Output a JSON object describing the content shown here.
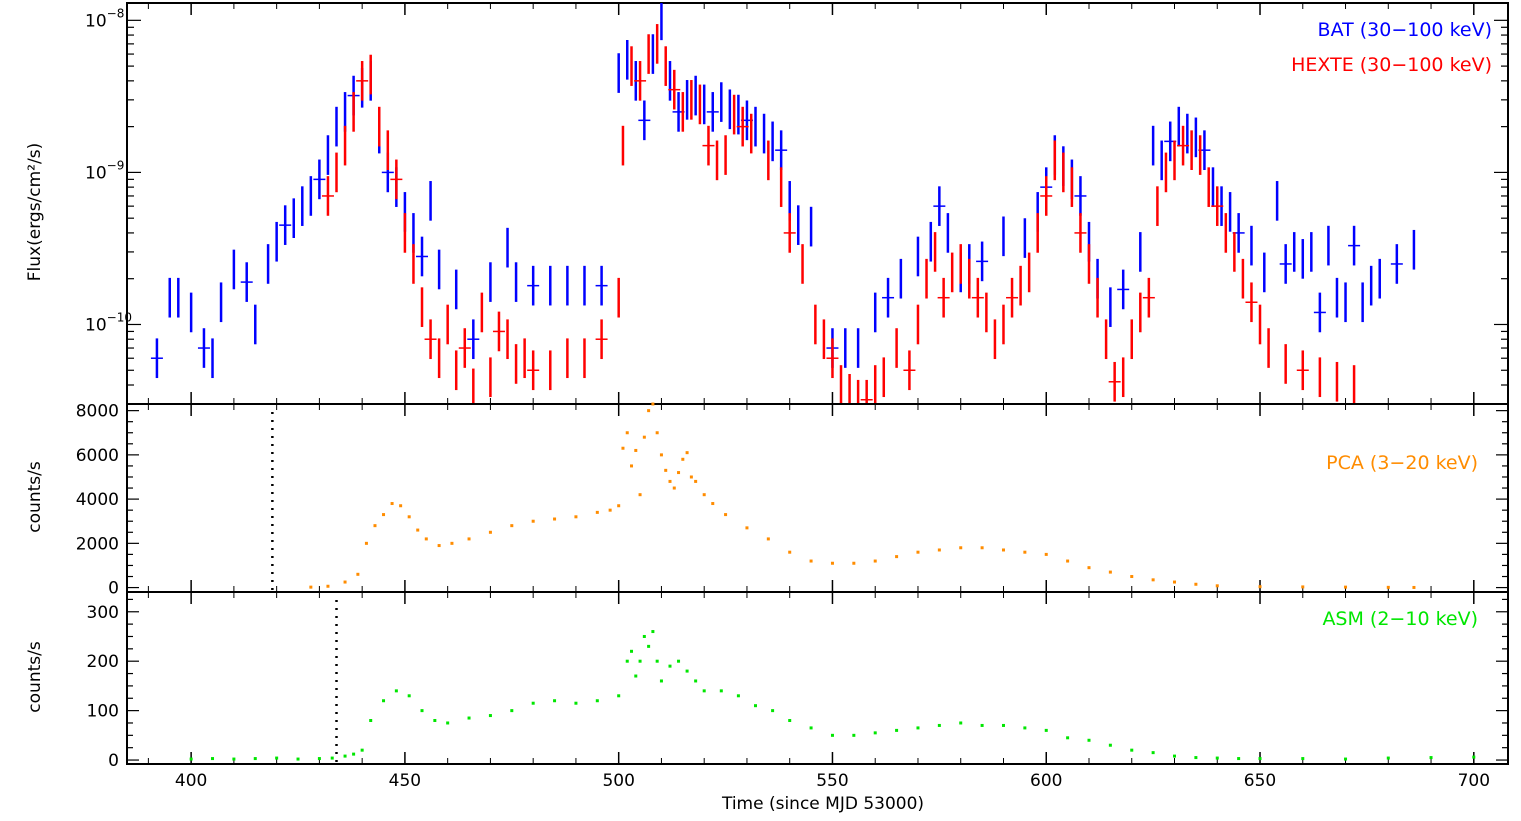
{
  "chart_data": [
    {
      "type": "scatter",
      "panel": "top",
      "ylabel": "Flux(ergs/cm²/s)",
      "yscale": "log",
      "ylim": [
        3e-11,
        1.3e-08
      ],
      "xlim": [
        385,
        708
      ],
      "yticks": [
        {
          "value": 1e-10,
          "label": "10",
          "exp": "−10"
        },
        {
          "value": 1e-09,
          "label": "10",
          "exp": "−9"
        },
        {
          "value": 1e-08,
          "label": "10",
          "exp": "−8"
        }
      ],
      "series": [
        {
          "name": "BAT (30−100 keV)",
          "color": "#0000ff",
          "x": [
            392,
            395,
            397,
            400,
            403,
            405,
            407,
            410,
            413,
            415,
            418,
            420,
            422,
            424,
            426,
            428,
            430,
            432,
            434,
            436,
            438,
            440,
            442,
            444,
            446,
            448,
            450,
            452,
            454,
            456,
            458,
            462,
            466,
            470,
            474,
            476,
            480,
            484,
            488,
            492,
            496,
            500,
            502,
            504,
            506,
            508,
            510,
            512,
            514,
            516,
            518,
            520,
            522,
            524,
            526,
            528,
            530,
            532,
            534,
            536,
            538,
            540,
            542,
            545,
            550,
            553,
            556,
            560,
            563,
            566,
            570,
            573,
            575,
            577,
            580,
            582,
            585,
            590,
            595,
            598,
            600,
            602,
            604,
            606,
            608,
            610,
            612,
            615,
            618,
            622,
            625,
            627,
            629,
            631,
            633,
            635,
            637,
            639,
            641,
            643,
            645,
            648,
            651,
            654,
            656,
            658,
            660,
            662,
            664,
            666,
            668,
            670,
            672,
            674,
            676,
            678,
            682,
            686
          ],
          "y": [
            6e-11,
            1.5e-10,
            1.5e-10,
            1.2e-10,
            7e-11,
            6e-11,
            1.4e-10,
            2.3e-10,
            1.9e-10,
            1e-10,
            2.5e-10,
            3.5e-10,
            4.5e-10,
            5e-10,
            6e-10,
            7e-10,
            9e-10,
            1.3e-09,
            2e-09,
            2.5e-09,
            3.2e-09,
            3.6e-09,
            4e-09,
            1.8e-09,
            1e-09,
            8e-10,
            5.5e-10,
            4e-10,
            2.8e-10,
            6.5e-10,
            2.3e-10,
            1.7e-10,
            8e-11,
            1.9e-10,
            3.2e-10,
            1.9e-10,
            1.8e-10,
            1.8e-10,
            1.8e-10,
            1.8e-10,
            1.8e-10,
            4.5e-09,
            5.5e-09,
            4e-09,
            2.2e-09,
            6e-09,
            1e-08,
            4e-09,
            2.5e-09,
            3e-09,
            3.2e-09,
            2.8e-09,
            2.5e-09,
            2.9e-09,
            2.6e-09,
            2.4e-09,
            2.2e-09,
            2e-09,
            1.8e-09,
            1.6e-09,
            1.4e-09,
            6.5e-10,
            4.5e-10,
            4.4e-10,
            7e-11,
            7e-11,
            7e-11,
            1.2e-10,
            1.5e-10,
            2e-10,
            2.8e-10,
            3.5e-10,
            6e-10,
            4e-10,
            2.2e-10,
            2.5e-10,
            2.6e-10,
            3.8e-10,
            3.7e-10,
            5.5e-10,
            8e-10,
            1.3e-09,
            1.1e-09,
            9e-10,
            7e-10,
            3.5e-10,
            2e-10,
            1.3e-10,
            1.7e-10,
            3e-10,
            1.5e-09,
            1.2e-09,
            1.6e-09,
            2e-09,
            1.8e-09,
            1.7e-09,
            1.4e-09,
            8e-10,
            6e-10,
            5.5e-10,
            4e-10,
            3.3e-10,
            2.2e-10,
            6.5e-10,
            2.5e-10,
            3e-10,
            2.7e-10,
            3e-10,
            1.2e-10,
            3.3e-10,
            1.5e-10,
            1.4e-10,
            3.3e-10,
            1.4e-10,
            1.8e-10,
            2e-10,
            2.5e-10,
            3.1e-10
          ]
        },
        {
          "name": "HEXTE (30−100 keV)",
          "color": "#ff0000",
          "x": [
            432,
            434,
            436,
            438,
            440,
            442,
            444,
            446,
            448,
            450,
            452,
            454,
            456,
            458,
            460,
            462,
            464,
            466,
            468,
            470,
            472,
            474,
            476,
            478,
            480,
            484,
            488,
            492,
            496,
            500,
            501,
            503,
            505,
            507,
            509,
            511,
            513,
            515,
            517,
            519,
            521,
            523,
            525,
            527,
            529,
            531,
            535,
            538,
            540,
            543,
            546,
            548,
            550,
            552,
            554,
            556,
            558,
            560,
            562,
            565,
            568,
            570,
            572,
            574,
            576,
            578,
            580,
            582,
            584,
            586,
            588,
            590,
            592,
            594,
            596,
            598,
            600,
            602,
            604,
            606,
            608,
            610,
            612,
            614,
            616,
            618,
            620,
            622,
            624,
            626,
            628,
            630,
            632,
            634,
            636,
            638,
            640,
            642,
            644,
            646,
            648,
            650,
            652,
            656,
            660,
            664,
            668,
            672
          ],
          "y": [
            7e-10,
            1e-09,
            1.5e-09,
            2.5e-09,
            4e-09,
            4.4e-09,
            2e-09,
            1.4e-09,
            9e-10,
            4e-10,
            2.5e-10,
            1.3e-10,
            8e-11,
            6e-11,
            1e-10,
            5e-11,
            7e-11,
            3.8e-11,
            1.2e-10,
            4.5e-11,
            9e-11,
            8e-11,
            5.5e-11,
            6e-11,
            5e-11,
            5e-11,
            6e-11,
            6e-11,
            8e-11,
            1.5e-10,
            1.5e-09,
            5e-09,
            4e-09,
            6e-09,
            7e-09,
            5e-09,
            3.5e-09,
            2.5e-09,
            3e-09,
            2.8e-09,
            1.5e-09,
            1.2e-09,
            1.3e-09,
            2.4e-09,
            2e-09,
            1.8e-09,
            1.2e-09,
            8e-10,
            4e-10,
            2.5e-10,
            1e-10,
            8e-11,
            6e-11,
            4e-11,
            3.5e-11,
            3.2e-11,
            3.2e-11,
            4e-11,
            4.5e-11,
            7e-11,
            5e-11,
            1e-10,
            2e-10,
            3e-10,
            1.5e-10,
            2.2e-10,
            2.5e-10,
            2e-10,
            1.5e-10,
            1.2e-10,
            8e-11,
            1e-10,
            1.5e-10,
            1.8e-10,
            2.2e-10,
            4e-10,
            7e-10,
            1.2e-09,
            1e-09,
            8e-10,
            4e-10,
            2.5e-10,
            1.5e-10,
            8e-11,
            4.2e-11,
            4.5e-11,
            8e-11,
            1.2e-10,
            1.5e-10,
            6e-10,
            1e-09,
            1.2e-09,
            1.5e-09,
            1.4e-09,
            1.3e-09,
            8e-10,
            6e-10,
            4e-10,
            3e-10,
            2e-10,
            1.4e-10,
            1e-10,
            7e-11,
            5.5e-11,
            5e-11,
            4.5e-11,
            4.2e-11,
            4e-11
          ]
        }
      ]
    },
    {
      "type": "scatter",
      "panel": "middle",
      "ylabel": "counts/s",
      "ylim": [
        -200,
        8300
      ],
      "xlim": [
        385,
        708
      ],
      "yticks": [
        0,
        2000,
        4000,
        6000,
        8000
      ],
      "vline_x": 419,
      "series": [
        {
          "name": "PCA (3−20 keV)",
          "color": "#ff8c00",
          "x": [
            428,
            432,
            436,
            439,
            441,
            443,
            445,
            447,
            449,
            451,
            453,
            455,
            458,
            461,
            465,
            470,
            475,
            480,
            485,
            490,
            495,
            498,
            500,
            501,
            502,
            503,
            504,
            505,
            506,
            507,
            508,
            509,
            510,
            511,
            512,
            513,
            514,
            515,
            516,
            517,
            518,
            520,
            522,
            525,
            530,
            535,
            540,
            545,
            550,
            555,
            560,
            565,
            570,
            575,
            580,
            585,
            590,
            595,
            600,
            605,
            610,
            615,
            620,
            625,
            630,
            635,
            640,
            650,
            660,
            670,
            680,
            686
          ],
          "y": [
            20,
            60,
            250,
            600,
            2000,
            2800,
            3300,
            3800,
            3700,
            3200,
            2600,
            2200,
            1900,
            2000,
            2200,
            2500,
            2800,
            3000,
            3100,
            3200,
            3400,
            3500,
            3700,
            6300,
            7000,
            5500,
            6200,
            4200,
            6800,
            8000,
            8300,
            7000,
            6000,
            5300,
            4800,
            4500,
            5200,
            5800,
            6100,
            5000,
            4800,
            4200,
            3800,
            3300,
            2700,
            2200,
            1600,
            1200,
            1100,
            1100,
            1200,
            1400,
            1600,
            1700,
            1800,
            1800,
            1700,
            1600,
            1500,
            1200,
            900,
            700,
            500,
            350,
            250,
            150,
            80,
            40,
            30,
            20,
            10,
            5
          ]
        }
      ]
    },
    {
      "type": "scatter",
      "panel": "bottom",
      "ylabel": "counts/s",
      "xlabel": "Time (since MJD 53000)",
      "ylim": [
        -8,
        340
      ],
      "xlim": [
        385,
        708
      ],
      "yticks": [
        0,
        100,
        200,
        300
      ],
      "xticks": [
        400,
        450,
        500,
        550,
        600,
        650,
        700
      ],
      "vline_x": 434,
      "series": [
        {
          "name": "ASM (2−10 keV)",
          "color": "#00e600",
          "x": [
            400,
            405,
            410,
            415,
            420,
            425,
            430,
            433,
            436,
            438,
            440,
            442,
            445,
            448,
            451,
            454,
            457,
            460,
            465,
            470,
            475,
            480,
            485,
            490,
            495,
            500,
            502,
            503,
            504,
            505,
            506,
            507,
            508,
            509,
            510,
            512,
            514,
            516,
            518,
            520,
            524,
            528,
            532,
            536,
            540,
            545,
            550,
            555,
            560,
            565,
            570,
            575,
            580,
            585,
            590,
            595,
            600,
            605,
            610,
            615,
            620,
            625,
            630,
            635,
            640,
            645,
            650,
            660,
            670,
            680,
            690,
            700
          ],
          "y": [
            2,
            3,
            2,
            3,
            4,
            2,
            3,
            4,
            8,
            12,
            20,
            80,
            120,
            140,
            130,
            100,
            80,
            75,
            85,
            90,
            100,
            115,
            120,
            115,
            120,
            130,
            200,
            220,
            170,
            200,
            250,
            230,
            260,
            200,
            160,
            190,
            200,
            180,
            160,
            140,
            140,
            130,
            110,
            100,
            80,
            65,
            50,
            50,
            55,
            60,
            65,
            70,
            75,
            70,
            70,
            65,
            60,
            45,
            40,
            30,
            20,
            15,
            8,
            5,
            4,
            3,
            3,
            3,
            2,
            4,
            5,
            6
          ]
        }
      ]
    }
  ]
}
